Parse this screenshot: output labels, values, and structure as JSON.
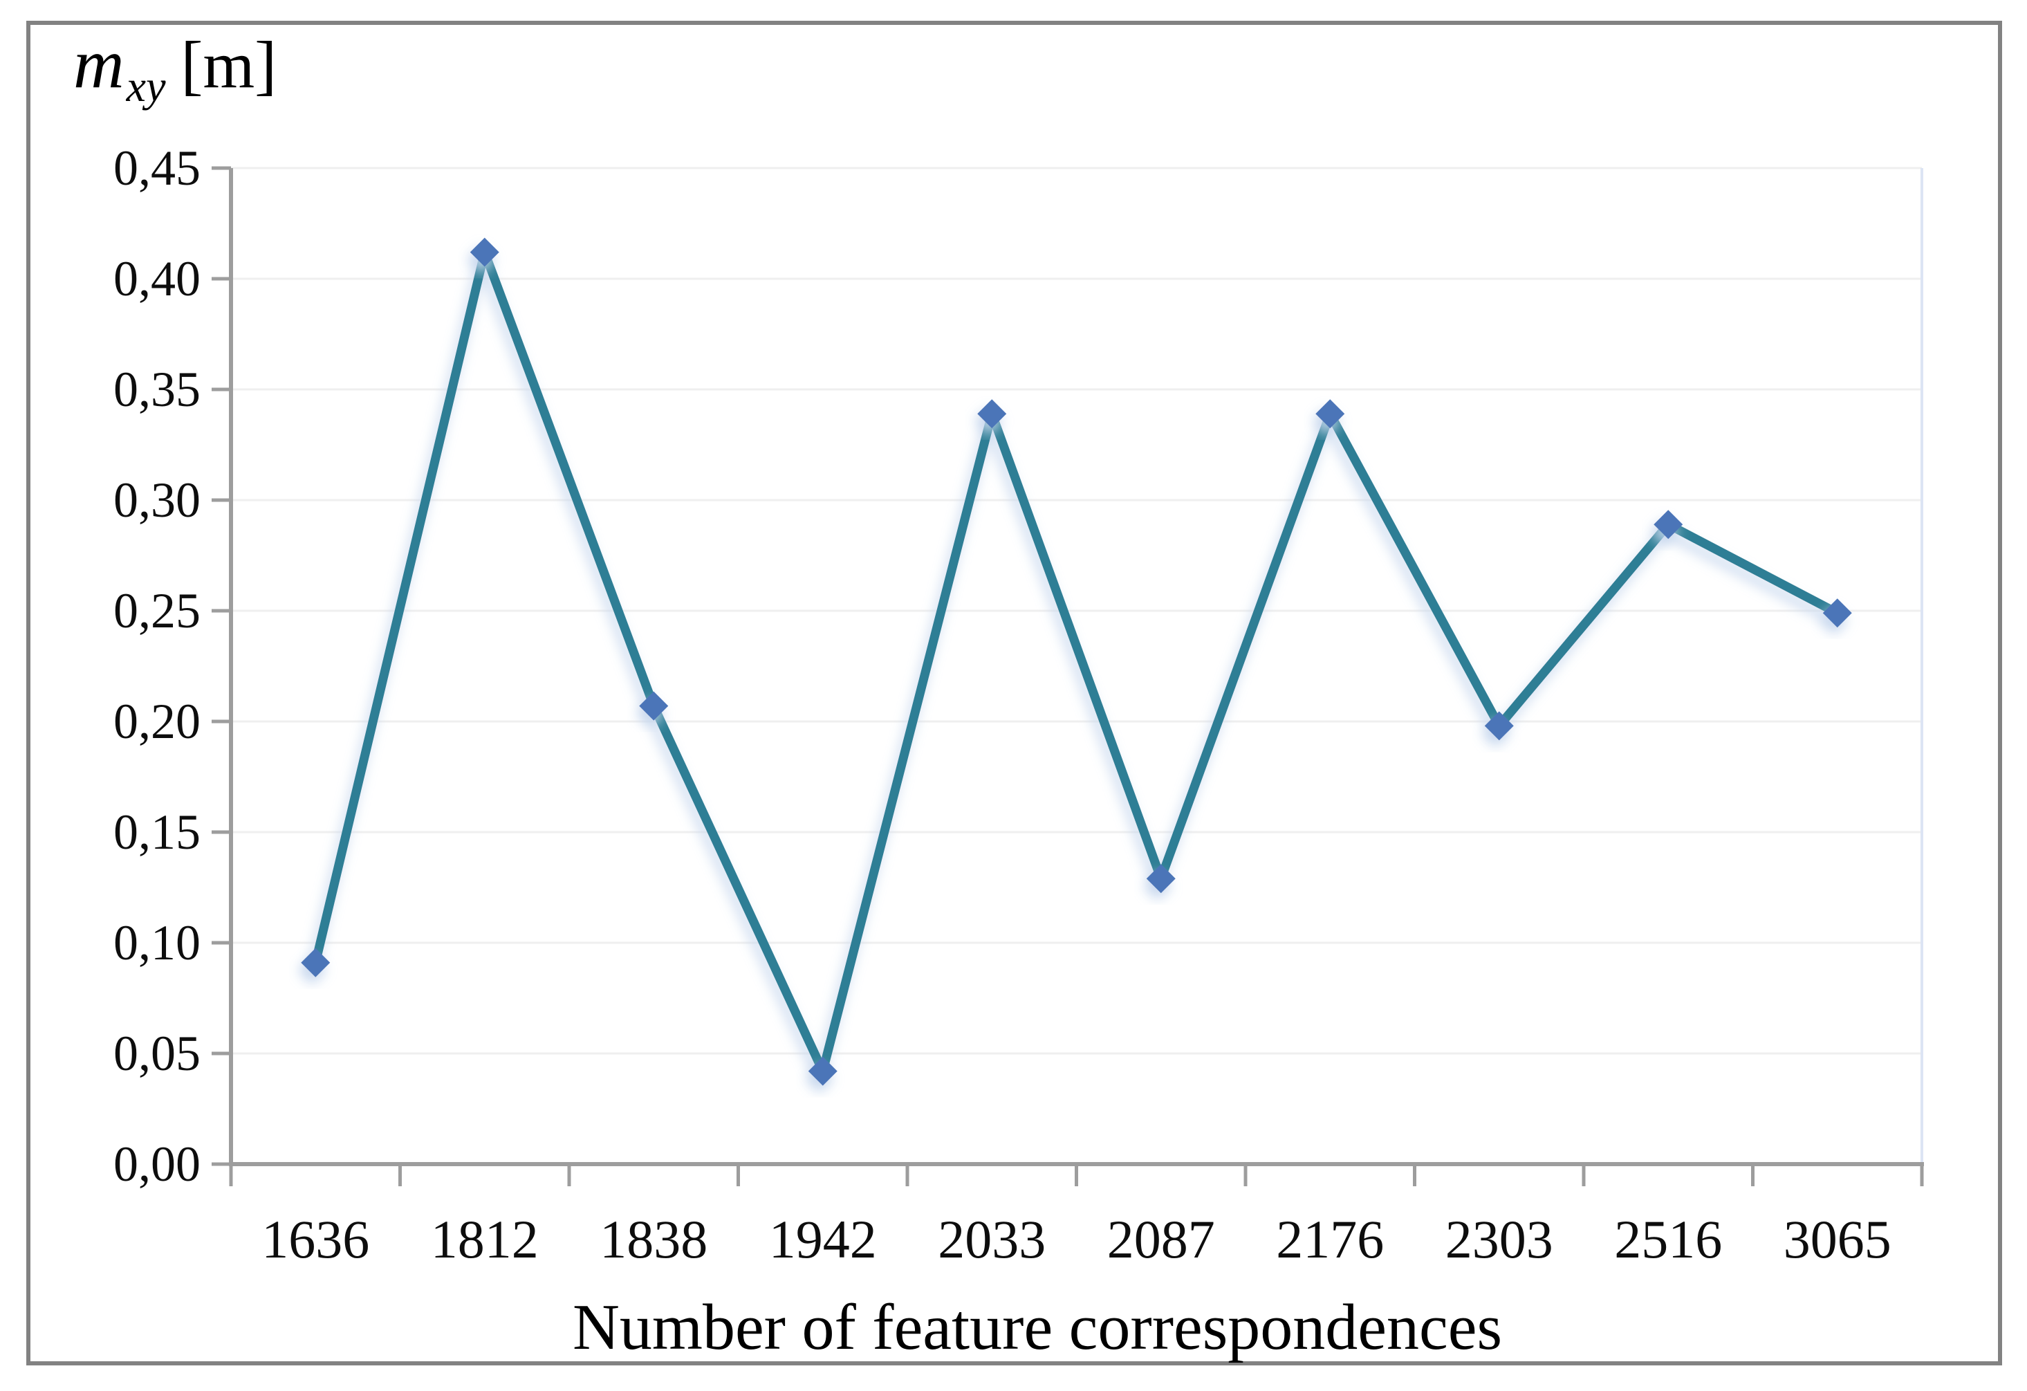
{
  "figure": {
    "title_var": "m",
    "title_sub": "xy",
    "title_unit": "[m]"
  },
  "chart_data": {
    "type": "line",
    "title": "m_xy [m]",
    "xlabel": "Number of feature correspondences",
    "ylabel": "m_xy [m]",
    "categories": [
      "1636",
      "1812",
      "1838",
      "1942",
      "2033",
      "2087",
      "2176",
      "2303",
      "2516",
      "3065"
    ],
    "values": [
      0.091,
      0.412,
      0.207,
      0.042,
      0.339,
      0.129,
      0.339,
      0.198,
      0.289,
      0.249
    ],
    "ylim": [
      0,
      0.45
    ],
    "y_tick_step": 0.05,
    "y_tick_labels": [
      "0,00",
      "0,05",
      "0,10",
      "0,15",
      "0,20",
      "0,25",
      "0,30",
      "0,35",
      "0,40",
      "0,45"
    ],
    "decimal_separator": ",",
    "grid": true,
    "legend": false,
    "marker_shape": "diamond"
  },
  "colors": {
    "line": "#2E7E95",
    "marker": "#4C74B8",
    "marker_glow": "#C7D8EE",
    "gridline": "#EFEFEF",
    "axis": "#9D9D9D",
    "outer_border": "#828282",
    "plot_right_edge": "#DCE4F4",
    "tick_label": "#0d0d0d",
    "background": "#ffffff"
  }
}
